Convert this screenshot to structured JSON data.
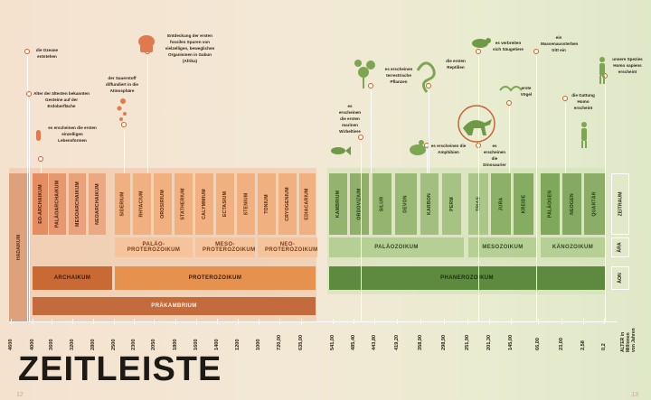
{
  "title": "ZEITLEISTE",
  "page_left": "12",
  "page_right": "13",
  "axis_label": "ALTER in Millionen von Jahren",
  "row_labels": {
    "zeitraum": "ZEITRAUM",
    "aera": "ÄRA",
    "aeon": "ÄON"
  },
  "hadaikum": "HADAIKUM",
  "periods": [
    "EO-ARCHAIKUM",
    "PALÄOARCHAIKUM",
    "MESOARCHAIKUM",
    "NEOARCHAIKUM",
    "SIDERIUM",
    "RHYACIUM",
    "OROSIRIUM",
    "STATHERIUM",
    "CALYMMIUM",
    "ECTASIUM",
    "STENIUM",
    "TONIUM",
    "CRYOGENIUM",
    "EDIACARIUM",
    "KAMBRIUM",
    "ORDOVIZIUM",
    "SILUR",
    "DEVON",
    "KARBON",
    "PERM",
    "TRIAS",
    "JURA",
    "KREIDE",
    "PALÄOGEN",
    "NEOGEN",
    "QUARTÄR"
  ],
  "eras": [
    "PALÄO-PROTEROZOIKUM",
    "MESO-PROTEROZOIKUM",
    "NEO-PROTEROZOIKUM",
    "PALÄOZOIKUM",
    "MESOZOIKUM",
    "KÄNOZOIKUM"
  ],
  "eons": [
    "ARCHAIKUM",
    "PROTEROZOIKUM",
    "PHANEROZOIKUM"
  ],
  "supereon": "PRÄKAMBRIUM",
  "ticks": [
    "4600",
    "4000",
    "3600",
    "3200",
    "2800",
    "2500",
    "2300",
    "2050",
    "1800",
    "1600",
    "1400",
    "1200",
    "1000",
    "720,00",
    "635,00",
    "541,00",
    "485,40",
    "443,80",
    "419,20",
    "358,90",
    "298,90",
    "251,90",
    "201,30",
    "145,00",
    "66,00",
    "23,00",
    "2,58",
    "0,2"
  ],
  "events": [
    {
      "text": "die Ozeane entstehen"
    },
    {
      "text": "Alter der ältesten bekannten Gesteine auf der Erdoberfläche"
    },
    {
      "text": "es erscheinen die ersten einzelligen Lebensformen"
    },
    {
      "text": "der Sauerstoff diffundiert in die Atmosphäre"
    },
    {
      "text": "Entdeckung der ersten fossilen Spuren von vielzelligen, beweglichen Organismen in Gabun (Afrika)"
    },
    {
      "text": "es erscheinen die ersten marinen Wirbeltiere"
    },
    {
      "text": "es erscheinen terrestrische Pflanzen"
    },
    {
      "text": "es erscheinen die Amphibien"
    },
    {
      "text": "die ersten Reptilien"
    },
    {
      "text": "es erscheinen die Dinosaurier"
    },
    {
      "text": "es verbreiten sich Säugetiere"
    },
    {
      "text": "erste Vögel"
    },
    {
      "text": "ein Massenaussterben tritt ein"
    },
    {
      "text": "die Gattung Homo erscheint"
    },
    {
      "text": "unsere Spezies Homo sapiens erscheint"
    }
  ],
  "colors": {
    "hadaikum": "#dca27e",
    "archaikum": "#e58d62",
    "archaikum_eon": "#c96a35",
    "proterozoikum": "#f0b07f",
    "proterozoikum_eon": "#e7914e",
    "prakambrium": "#c36b3c",
    "phanerozoikum": "#8fb06c",
    "phanerozoikum_eon": "#5d8a3e",
    "accent": "#c8642f"
  }
}
